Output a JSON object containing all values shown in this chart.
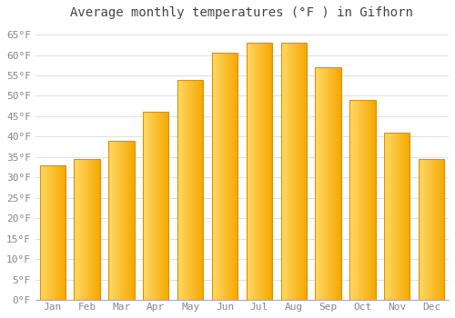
{
  "title": "Average monthly temperatures (°F ) in Gifhorn",
  "months": [
    "Jan",
    "Feb",
    "Mar",
    "Apr",
    "May",
    "Jun",
    "Jul",
    "Aug",
    "Sep",
    "Oct",
    "Nov",
    "Dec"
  ],
  "values": [
    33,
    34.5,
    39,
    46,
    54,
    60.5,
    63,
    63,
    57,
    49,
    41,
    34.5
  ],
  "bar_color_left": "#FFD966",
  "bar_color_right": "#F5A800",
  "bar_edge_color": "#E09000",
  "ylim": [
    0,
    67
  ],
  "yticks": [
    0,
    5,
    10,
    15,
    20,
    25,
    30,
    35,
    40,
    45,
    50,
    55,
    60,
    65
  ],
  "ytick_labels": [
    "0°F",
    "5°F",
    "10°F",
    "15°F",
    "20°F",
    "25°F",
    "30°F",
    "35°F",
    "40°F",
    "45°F",
    "50°F",
    "55°F",
    "60°F",
    "65°F"
  ],
  "background_color": "#ffffff",
  "grid_color": "#e0e0e0",
  "title_fontsize": 10,
  "tick_fontsize": 8,
  "bar_width": 0.75,
  "n_gradient_steps": 50
}
